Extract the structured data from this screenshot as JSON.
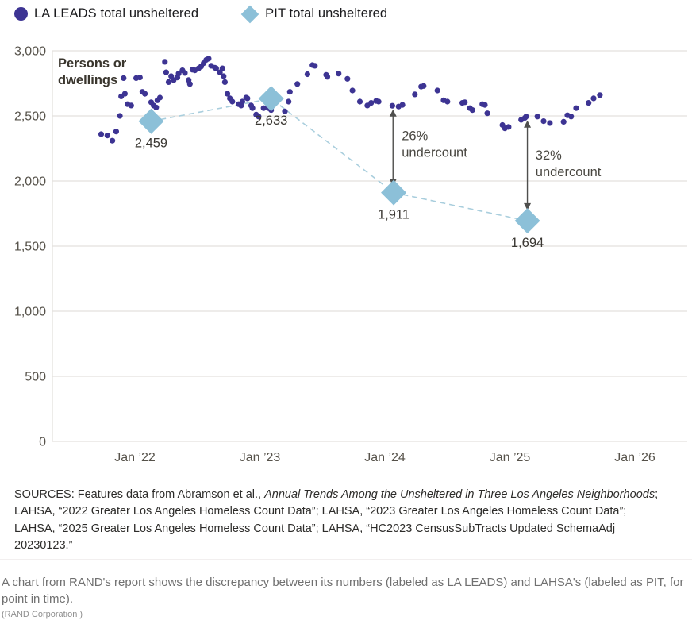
{
  "legend": {
    "items": [
      {
        "label": "LA LEADS total unsheltered",
        "marker": "circle",
        "color": "#3d3493"
      },
      {
        "label": "PIT total unsheltered",
        "marker": "diamond",
        "color": "#8cc0d8"
      }
    ]
  },
  "sources": {
    "prefix": "SOURCES: Features data from Abramson et al., ",
    "italic": "Annual Trends Among the Unsheltered in Three Los Angeles Neighborhoods",
    "suffix": "; LAHSA, “2022 Greater Los Angeles Homeless Count Data”; LAHSA, “2023 Greater Los Angeles Homeless Count Data”; LAHSA, “2025 Greater Los Angeles Homeless Count Data”; LAHSA, “HC2023 CensusSubTracts Updated SchemaAdj 20230123.”"
  },
  "caption": "A chart from RAND's report shows the discrepancy between its numbers (labeled as LA LEADS) and LAHSA's (labeled as PIT, for point in time).",
  "attribution": "(RAND Corporation )",
  "chart_data": {
    "type": "scatter",
    "plot_label_lines": [
      "Persons or",
      "dwellings"
    ],
    "x_axis": {
      "tick_years": [
        2022,
        2023,
        2024,
        2025,
        2026
      ],
      "tick_labels": [
        "Jan ’22",
        "Jan ’23",
        "Jan ’24",
        "Jan ’25",
        "Jan ’26"
      ]
    },
    "y_axis": {
      "min": 0,
      "max": 3000,
      "tick_step": 500,
      "tick_labels": [
        "0",
        "500",
        "1,000",
        "1,500",
        "2,000",
        "2,500",
        "3,000"
      ],
      "grid": true
    },
    "series": [
      {
        "name": "LA LEADS total unsheltered",
        "marker": "circle",
        "color": "#3d3493",
        "points": [
          [
            2021.73,
            2360
          ],
          [
            2021.78,
            2350
          ],
          [
            2021.82,
            2310
          ],
          [
            2021.85,
            2380
          ],
          [
            2021.88,
            2500
          ],
          [
            2021.89,
            2650
          ],
          [
            2021.91,
            2790
          ],
          [
            2021.92,
            2670
          ],
          [
            2021.94,
            2590
          ],
          [
            2021.97,
            2580
          ],
          [
            2022.01,
            2790
          ],
          [
            2022.04,
            2795
          ],
          [
            2022.06,
            2685
          ],
          [
            2022.08,
            2670
          ],
          [
            2022.13,
            2605
          ],
          [
            2022.15,
            2580
          ],
          [
            2022.17,
            2565
          ],
          [
            2022.18,
            2620
          ],
          [
            2022.2,
            2640
          ],
          [
            2022.24,
            2915
          ],
          [
            2022.25,
            2835
          ],
          [
            2022.27,
            2760
          ],
          [
            2022.29,
            2805
          ],
          [
            2022.31,
            2775
          ],
          [
            2022.34,
            2795
          ],
          [
            2022.35,
            2825
          ],
          [
            2022.38,
            2850
          ],
          [
            2022.4,
            2830
          ],
          [
            2022.43,
            2775
          ],
          [
            2022.44,
            2745
          ],
          [
            2022.46,
            2855
          ],
          [
            2022.48,
            2850
          ],
          [
            2022.51,
            2865
          ],
          [
            2022.53,
            2880
          ],
          [
            2022.55,
            2905
          ],
          [
            2022.57,
            2930
          ],
          [
            2022.59,
            2940
          ],
          [
            2022.61,
            2885
          ],
          [
            2022.64,
            2870
          ],
          [
            2022.65,
            2865
          ],
          [
            2022.68,
            2835
          ],
          [
            2022.7,
            2865
          ],
          [
            2022.71,
            2805
          ],
          [
            2022.72,
            2760
          ],
          [
            2022.74,
            2670
          ],
          [
            2022.76,
            2635
          ],
          [
            2022.78,
            2610
          ],
          [
            2022.83,
            2590
          ],
          [
            2022.85,
            2580
          ],
          [
            2022.86,
            2610
          ],
          [
            2022.89,
            2640
          ],
          [
            2022.9,
            2635
          ],
          [
            2022.93,
            2580
          ],
          [
            2022.94,
            2560
          ],
          [
            2022.97,
            2510
          ],
          [
            2022.99,
            2495
          ],
          [
            2023.03,
            2560
          ],
          [
            2023.07,
            2560
          ],
          [
            2023.09,
            2545
          ],
          [
            2023.2,
            2535
          ],
          [
            2023.23,
            2610
          ],
          [
            2023.24,
            2685
          ],
          [
            2023.3,
            2745
          ],
          [
            2023.38,
            2820
          ],
          [
            2023.42,
            2890
          ],
          [
            2023.44,
            2885
          ],
          [
            2023.53,
            2815
          ],
          [
            2023.54,
            2800
          ],
          [
            2023.63,
            2825
          ],
          [
            2023.7,
            2785
          ],
          [
            2023.74,
            2695
          ],
          [
            2023.8,
            2610
          ],
          [
            2023.86,
            2580
          ],
          [
            2023.89,
            2600
          ],
          [
            2023.93,
            2615
          ],
          [
            2023.95,
            2610
          ],
          [
            2024.06,
            2578
          ],
          [
            2024.11,
            2572
          ],
          [
            2024.14,
            2585
          ],
          [
            2024.24,
            2665
          ],
          [
            2024.29,
            2725
          ],
          [
            2024.31,
            2730
          ],
          [
            2024.42,
            2695
          ],
          [
            2024.47,
            2620
          ],
          [
            2024.5,
            2610
          ],
          [
            2024.62,
            2600
          ],
          [
            2024.64,
            2605
          ],
          [
            2024.68,
            2560
          ],
          [
            2024.7,
            2545
          ],
          [
            2024.78,
            2590
          ],
          [
            2024.8,
            2585
          ],
          [
            2024.82,
            2520
          ],
          [
            2024.94,
            2430
          ],
          [
            2024.96,
            2405
          ],
          [
            2024.99,
            2415
          ],
          [
            2025.09,
            2470
          ],
          [
            2025.12,
            2485
          ],
          [
            2025.13,
            2495
          ],
          [
            2025.22,
            2495
          ],
          [
            2025.27,
            2460
          ],
          [
            2025.32,
            2445
          ],
          [
            2025.43,
            2455
          ],
          [
            2025.46,
            2505
          ],
          [
            2025.49,
            2495
          ],
          [
            2025.53,
            2560
          ],
          [
            2025.63,
            2600
          ],
          [
            2025.67,
            2635
          ],
          [
            2025.72,
            2660
          ]
        ]
      },
      {
        "name": "PIT total unsheltered",
        "marker": "diamond",
        "color": "#8cc0d8",
        "line_style": "dashed",
        "line_color": "#a9cedd",
        "points": [
          [
            2022.13,
            2459
          ],
          [
            2023.09,
            2633
          ],
          [
            2024.07,
            1911
          ],
          [
            2025.14,
            1694
          ]
        ],
        "point_labels": [
          "2,459",
          "2,633",
          "1,911",
          "1,694"
        ]
      }
    ],
    "annotations": [
      {
        "lines": [
          "26%",
          "undercount"
        ],
        "arrow_x": 2024.065,
        "arrow_top": 2550,
        "arrow_bottom": 1960,
        "label_x": 2024.135,
        "label_top": 2405
      },
      {
        "lines": [
          "32%",
          "undercount"
        ],
        "arrow_x": 2025.14,
        "arrow_top": 2465,
        "arrow_bottom": 1775,
        "label_x": 2025.205,
        "label_top": 2255
      }
    ],
    "colors": {
      "grid": "#e3e1dd",
      "tick_text": "#56524a",
      "value_label_text": "#3b3833",
      "annotation_text": "#4a4842",
      "arrow": "#4f4f4d",
      "plot_label_text": "#3a362e"
    }
  }
}
